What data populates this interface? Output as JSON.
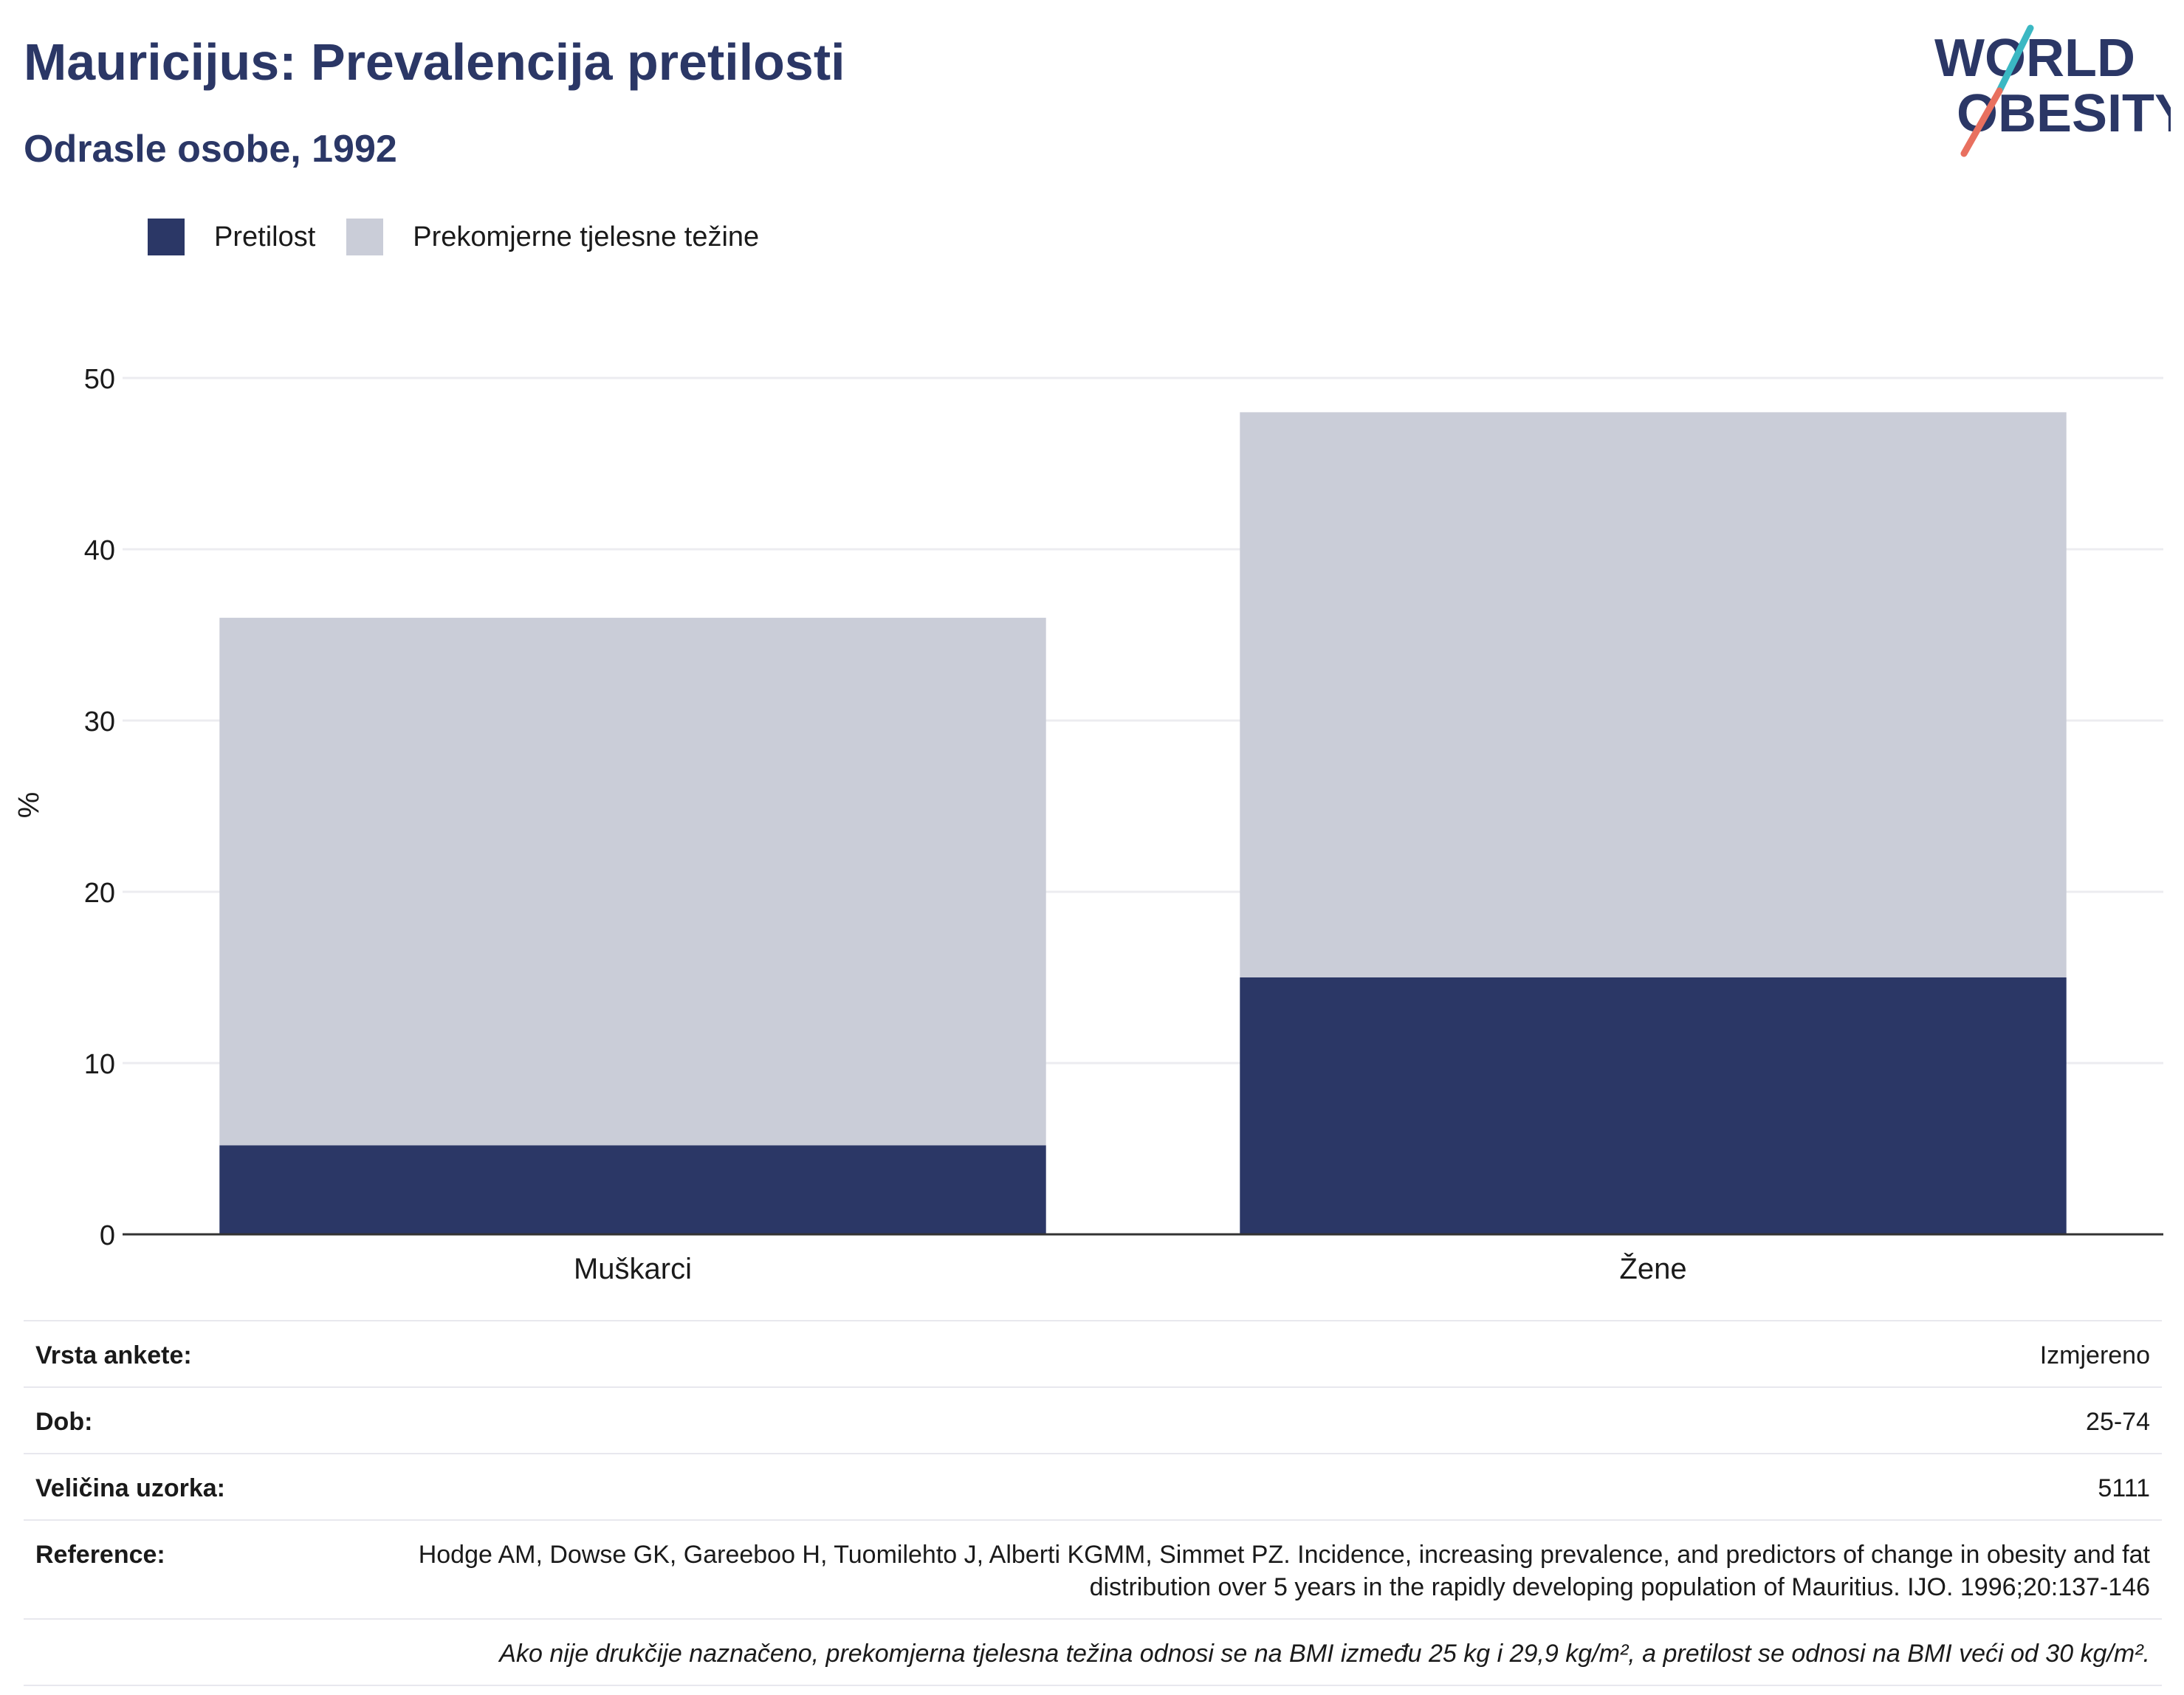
{
  "header": {
    "title": "Mauricijus: Prevalencija pretilosti",
    "subtitle": "Odrasle osobe, 1992"
  },
  "logo": {
    "line1": "WORLD",
    "line2": "OBESITY",
    "colors": {
      "text": "#2b3766",
      "slash_top": "#3bb8c3",
      "slash_bottom": "#e8705f"
    }
  },
  "colors": {
    "obesity": "#2b3766",
    "overweight": "#cacdd8",
    "grid": "#ececf0",
    "axis": "#333333"
  },
  "chart_data": {
    "type": "bar",
    "stacked": true,
    "categories": [
      "Muškarci",
      "Žene"
    ],
    "series": [
      {
        "name": "Pretilost",
        "values": [
          5.2,
          15.0
        ]
      },
      {
        "name": "Prekomjerne tjelesne težine",
        "values": [
          30.8,
          33.0
        ]
      }
    ],
    "ylabel": "%",
    "ylim": [
      0,
      50
    ],
    "yticks": [
      0,
      10,
      20,
      30,
      40,
      50
    ],
    "grid": true,
    "legend": "top-left"
  },
  "info": {
    "survey_label": "Vrsta ankete:",
    "survey_value": "Izmjereno",
    "age_label": "Dob:",
    "age_value": "25-74",
    "sample_label": "Veličina uzorka:",
    "sample_value": "5111",
    "reference_label": "Reference:",
    "reference_value": "Hodge AM, Dowse GK, Gareeboo H, Tuomilehto J, Alberti KGMM, Simmet PZ. Incidence, increasing prevalence, and predictors of change in obesity and fat distribution over 5 years in the rapidly developing population of Mauritius. IJO. 1996;20:137-146",
    "note": "Ako nije drukčije naznačeno, prekomjerna tjelesna težina odnosi se na BMI između 25 kg i 29,9 kg/m², a pretilost se odnosi na BMI veći od 30 kg/m²."
  }
}
